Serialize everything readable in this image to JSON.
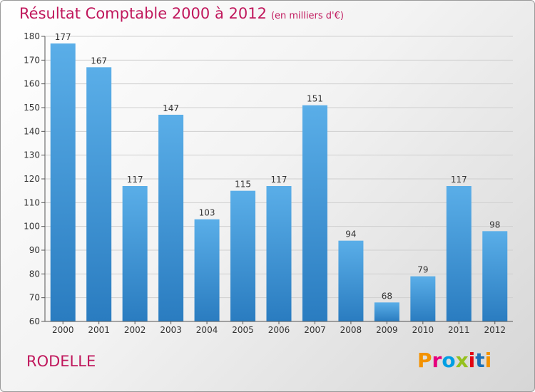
{
  "header": {
    "title": "Résultat Comptable 2000 à 2012",
    "unit": "(en milliers d'€)"
  },
  "footer": {
    "city": "RODELLE",
    "logo": "Proxiti"
  },
  "colors": {
    "title": "#c0175c",
    "bar_light": "#5aaee8",
    "bar_dark": "#2a7cc0",
    "grid": "#cfcfcf",
    "axis": "#555555",
    "logo": [
      "#f39200",
      "#e5007e",
      "#009fe3",
      "#95c11f",
      "#e30613",
      "#1d71b8",
      "#f39200"
    ]
  },
  "chart_data": {
    "type": "bar",
    "title": "Résultat Comptable 2000 à 2012",
    "subtitle": "(en milliers d'€)",
    "xlabel": "",
    "ylabel": "",
    "categories": [
      "2000",
      "2001",
      "2002",
      "2003",
      "2004",
      "2005",
      "2006",
      "2007",
      "2008",
      "2009",
      "2010",
      "2011",
      "2012"
    ],
    "values": [
      177,
      167,
      117,
      147,
      103,
      115,
      117,
      151,
      94,
      68,
      79,
      117,
      98
    ],
    "ylim": [
      60,
      180
    ],
    "yticks": [
      60,
      70,
      80,
      90,
      100,
      110,
      120,
      130,
      140,
      150,
      160,
      170,
      180
    ],
    "grid": true,
    "data_labels": true
  }
}
